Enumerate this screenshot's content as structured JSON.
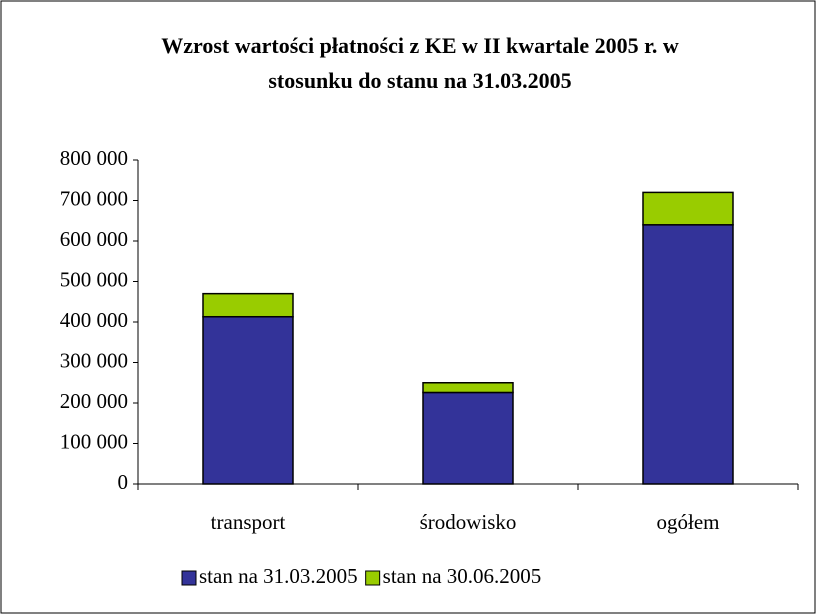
{
  "chart_data": {
    "type": "stacked_bar",
    "title_lines": [
      "Wzrost wartości płatności z KE w II kwartale 2005 r. w",
      "stosunku do stanu na 31.03.2005"
    ],
    "categories": [
      "transport",
      "środowisko",
      "ogółem"
    ],
    "series": [
      {
        "name": "stan na 31.03.2005",
        "color": "#333399",
        "values": [
          413000,
          226000,
          640000
        ]
      },
      {
        "name": "stan na 30.06.2005",
        "color": "#99cc00",
        "values": [
          57000,
          24000,
          80000
        ]
      }
    ],
    "ylim": [
      0,
      800000
    ],
    "yticks": [
      0,
      {
        "value": 100000,
        "label": "100 000"
      },
      {
        "value": 200000,
        "label": "200 000"
      },
      {
        "value": 300000,
        "label": "300 000"
      },
      {
        "value": 400000,
        "label": "400 000"
      },
      {
        "value": 500000,
        "label": "500 000"
      },
      {
        "value": 600000,
        "label": "600 000"
      },
      {
        "value": 700000,
        "label": "700 000"
      },
      {
        "value": 800000,
        "label": "800 000"
      }
    ],
    "legend": "bottom"
  }
}
